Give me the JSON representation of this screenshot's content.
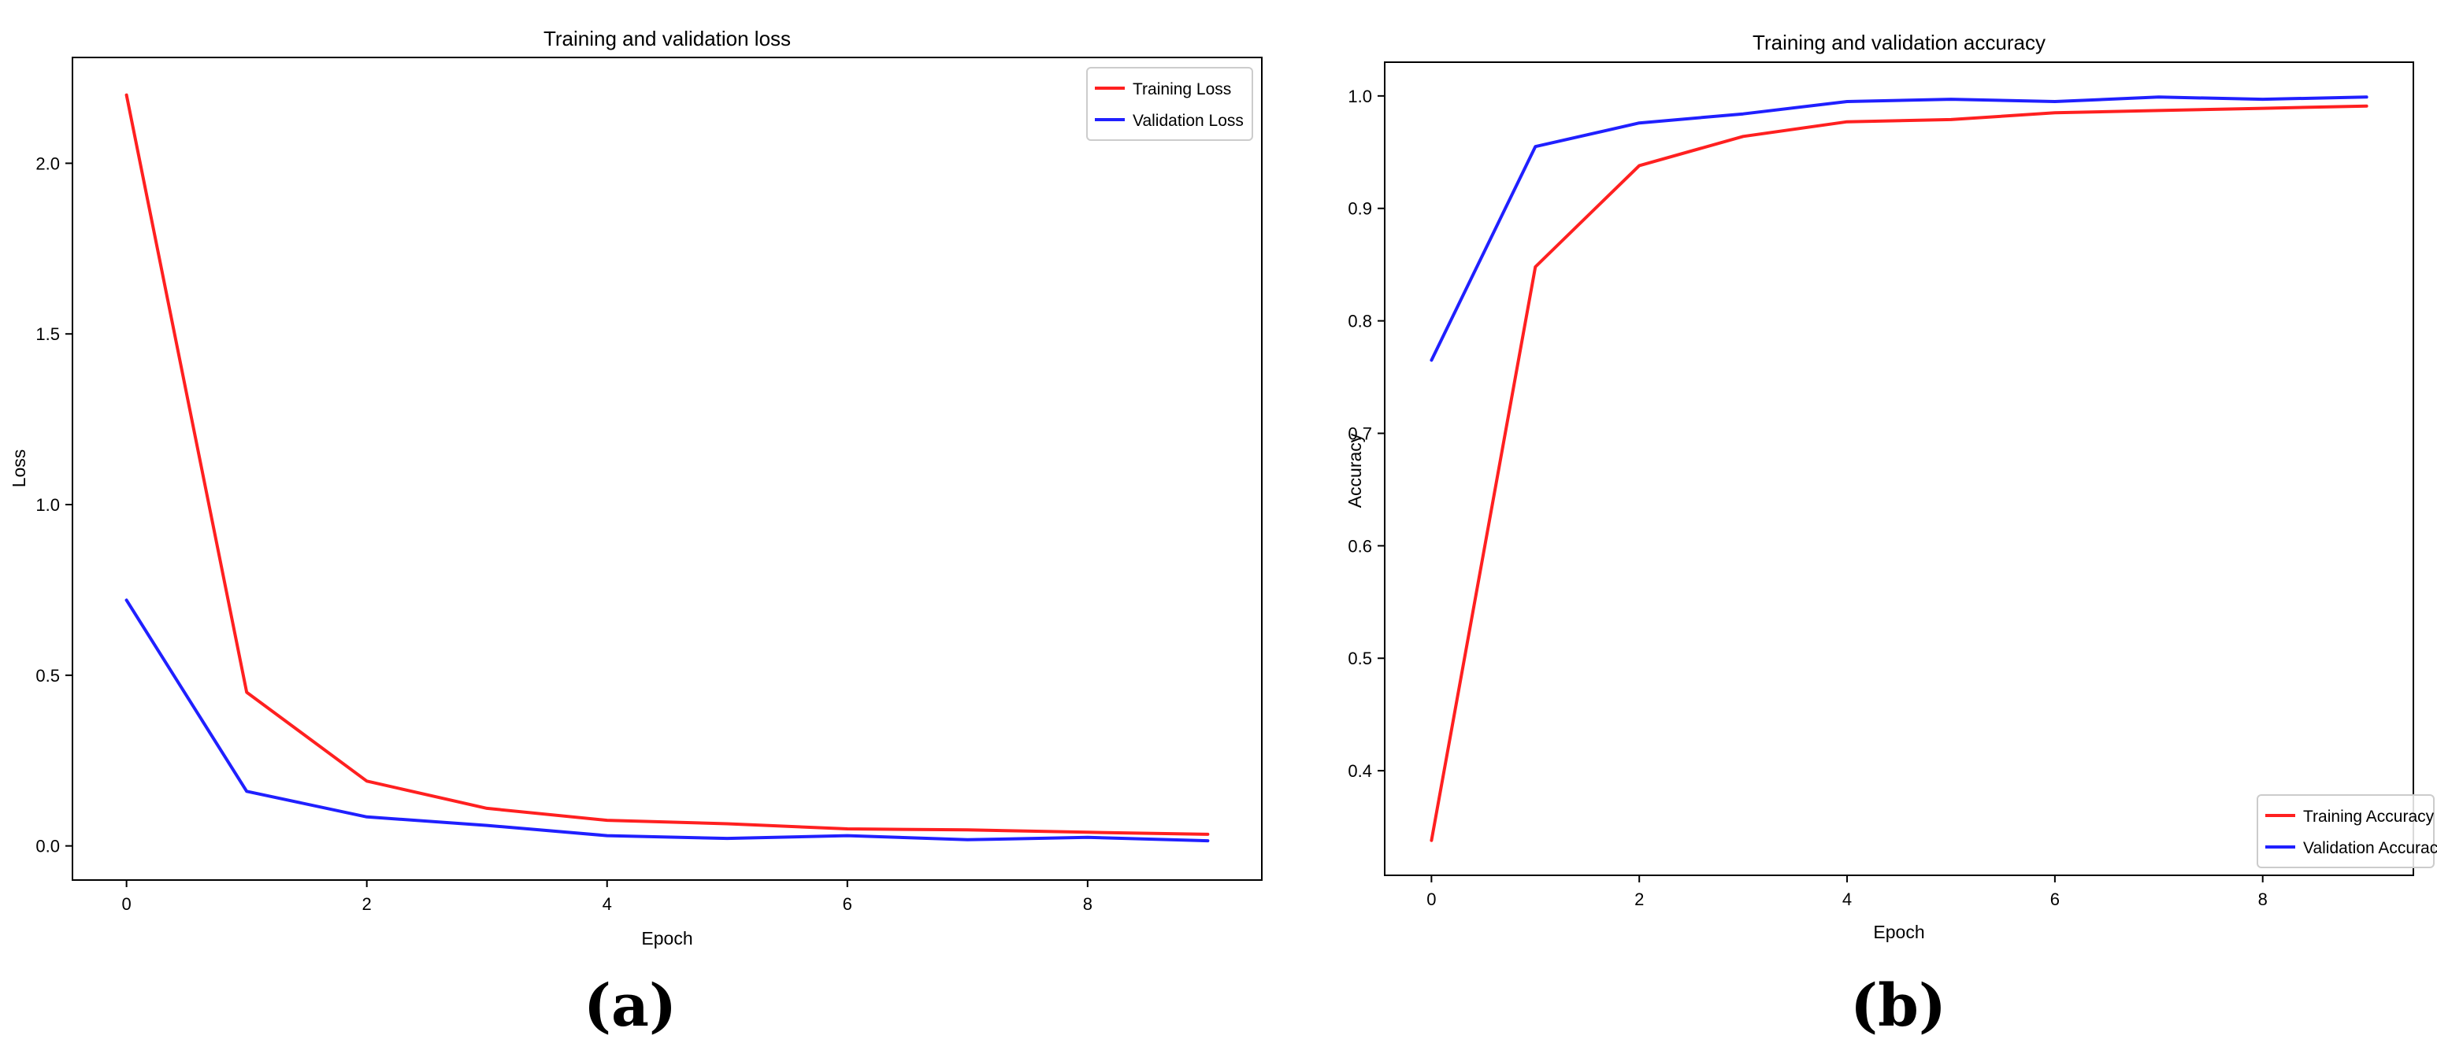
{
  "chart_data": [
    {
      "type": "line",
      "panel_label": "(a)",
      "title": "Training and validation loss",
      "xlabel": "Epoch",
      "ylabel": "Loss",
      "xlim": [
        -0.45,
        9.45
      ],
      "ylim": [
        -0.1,
        2.31
      ],
      "xticks": [
        0,
        2,
        4,
        6,
        8
      ],
      "yticks": [
        0.0,
        0.5,
        1.0,
        1.5,
        2.0
      ],
      "ytick_labels": [
        "0.0",
        "0.5",
        "1.0",
        "1.5",
        "2.0"
      ],
      "grid": false,
      "legend_position": "top-right",
      "x": [
        0,
        1,
        2,
        3,
        4,
        5,
        6,
        7,
        8,
        9
      ],
      "series": [
        {
          "name": "Training Loss",
          "color": "#ff2020",
          "values": [
            2.2,
            0.45,
            0.19,
            0.11,
            0.075,
            0.065,
            0.05,
            0.047,
            0.04,
            0.034
          ]
        },
        {
          "name": "Validation Loss",
          "color": "#2020ff",
          "values": [
            0.72,
            0.16,
            0.085,
            0.06,
            0.03,
            0.022,
            0.03,
            0.018,
            0.025,
            0.015
          ]
        }
      ]
    },
    {
      "type": "line",
      "panel_label": "(b)",
      "title": "Training and validation accuracy",
      "xlabel": "Epoch",
      "ylabel": "Accuracy",
      "xlim": [
        -0.45,
        9.45
      ],
      "ylim": [
        0.307,
        1.03
      ],
      "xticks": [
        0,
        2,
        4,
        6,
        8
      ],
      "yticks": [
        0.4,
        0.5,
        0.6,
        0.7,
        0.8,
        0.9,
        1.0
      ],
      "ytick_labels": [
        "0.4",
        "0.5",
        "0.6",
        "0.7",
        "0.8",
        "0.9",
        "1.0"
      ],
      "grid": false,
      "legend_position": "bottom-right",
      "x": [
        0,
        1,
        2,
        3,
        4,
        5,
        6,
        7,
        8,
        9
      ],
      "series": [
        {
          "name": "Training Accuracy",
          "color": "#ff2020",
          "values": [
            0.338,
            0.848,
            0.938,
            0.964,
            0.977,
            0.979,
            0.985,
            0.987,
            0.989,
            0.991
          ]
        },
        {
          "name": "Validation Accuracy",
          "color": "#2020ff",
          "values": [
            0.765,
            0.955,
            0.976,
            0.984,
            0.995,
            0.997,
            0.995,
            0.999,
            0.997,
            0.999
          ]
        }
      ]
    }
  ]
}
